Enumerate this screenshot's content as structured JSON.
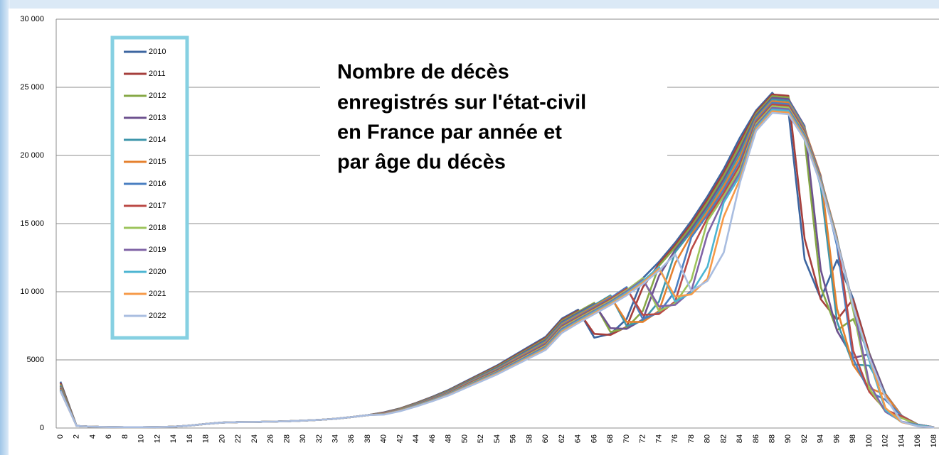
{
  "chart_data": {
    "type": "line",
    "title": [
      "Nombre de décès",
      "enregistrés sur l'état-civil",
      "en France par année et",
      "par âge du décès"
    ],
    "categories": [
      "0",
      "2",
      "4",
      "6",
      "8",
      "10",
      "12",
      "14",
      "16",
      "18",
      "20",
      "22",
      "24",
      "26",
      "28",
      "30",
      "32",
      "34",
      "36",
      "38",
      "40",
      "42",
      "44",
      "46",
      "48",
      "50",
      "52",
      "54",
      "56",
      "58",
      "60",
      "62",
      "64",
      "66",
      "68",
      "70",
      "72",
      "74",
      "76",
      "78",
      "80",
      "82",
      "84",
      "86",
      "88",
      "90",
      "92",
      "94",
      "96",
      "98",
      "100",
      "102",
      "104",
      "106",
      "108"
    ],
    "ylim": [
      0,
      30000
    ],
    "yticks": [
      0,
      5000,
      {
        "value": 10000,
        "label": "10 000"
      },
      {
        "value": 15000,
        "label": "15 000"
      },
      {
        "value": 20000,
        "label": "20 000"
      },
      {
        "value": 25000,
        "label": "25 000"
      },
      {
        "value": 30000,
        "label": "30 000"
      }
    ],
    "grid": true,
    "series": [
      {
        "name": "2010",
        "color": "#3d66a0",
        "values": [
          3400,
          150,
          100,
          70,
          60,
          60,
          70,
          100,
          180,
          300,
          400,
          430,
          450,
          470,
          500,
          540,
          600,
          680,
          800,
          950,
          1150,
          1450,
          1850,
          2300,
          2800,
          3400,
          4000,
          4600,
          5300,
          6000,
          6700,
          8030,
          8690,
          6630,
          6900,
          8000,
          11000,
          12200,
          13600,
          15200,
          17000,
          19000,
          21300,
          23300,
          24600,
          23275,
          12375,
          9500,
          12325,
          9500,
          5500,
          2500,
          900,
          250,
          60
        ]
      },
      {
        "name": "2011",
        "color": "#a63f3c",
        "values": [
          3300,
          150,
          100,
          70,
          60,
          60,
          70,
          100,
          180,
          300,
          400,
          430,
          450,
          470,
          500,
          540,
          600,
          680,
          800,
          950,
          1136,
          1433,
          1828,
          2272,
          2766,
          3359,
          3952,
          4545,
          5236,
          5928,
          6620,
          7948,
          8608,
          6909,
          6834,
          7425,
          10331,
          12050,
          13425,
          15000,
          16775,
          18750,
          21013,
          23175,
          24477,
          24378,
          13880,
          9452,
          7935,
          9453,
          5473,
          2488,
          896,
          249,
          60
        ]
      },
      {
        "name": "2012",
        "color": "#86a846",
        "values": [
          3200,
          150,
          100,
          70,
          60,
          60,
          70,
          100,
          180,
          300,
          400,
          430,
          450,
          470,
          500,
          540,
          600,
          680,
          800,
          950,
          1122,
          1415,
          1806,
          2245,
          2733,
          3318,
          3904,
          4490,
          5173,
          5856,
          6539,
          7865,
          8525,
          9185,
          7040,
          7350,
          8600,
          11900,
          13250,
          14800,
          16550,
          18500,
          20725,
          23050,
          24354,
          24255,
          21161,
          10346,
          7178,
          7994,
          5445,
          2475,
          891,
          248,
          59
        ]
      },
      {
        "name": "2013",
        "color": "#6e528f",
        "values": [
          3100,
          150,
          100,
          70,
          60,
          60,
          70,
          100,
          180,
          300,
          400,
          430,
          450,
          470,
          500,
          540,
          600,
          680,
          800,
          950,
          1109,
          1398,
          1783,
          2217,
          2699,
          3278,
          3856,
          4434,
          5109,
          5784,
          6459,
          7783,
          8443,
          9103,
          7329,
          7275,
          7969,
          11163,
          13075,
          14600,
          16325,
          18250,
          20438,
          22925,
          24231,
          24133,
          22163,
          11603,
          7141,
          5147,
          5418,
          2463,
          887,
          246,
          59
        ]
      },
      {
        "name": "2014",
        "color": "#3e96ab",
        "values": [
          3050,
          150,
          100,
          70,
          60,
          60,
          70,
          100,
          180,
          300,
          400,
          430,
          450,
          470,
          500,
          540,
          600,
          680,
          800,
          950,
          1095,
          1380,
          1761,
          2190,
          2666,
          3237,
          3808,
          4379,
          5046,
          5712,
          6378,
          7700,
          8360,
          9020,
          9735,
          7488,
          7875,
          9280,
          12900,
          14400,
          16100,
          18000,
          20150,
          22800,
          24108,
          24010,
          22050,
          17689,
          7816,
          4655,
          4582,
          2450,
          882,
          245,
          59
        ]
      },
      {
        "name": "2015",
        "color": "#e5812f",
        "values": [
          3000,
          150,
          100,
          70,
          60,
          60,
          70,
          100,
          180,
          300,
          400,
          430,
          450,
          470,
          500,
          540,
          600,
          680,
          800,
          950,
          1081,
          1363,
          1739,
          2162,
          2632,
          3196,
          3760,
          4324,
          4982,
          5640,
          6298,
          7618,
          8278,
          8938,
          9639,
          7790,
          7781,
          8588,
          12089,
          14200,
          15875,
          17750,
          19863,
          22675,
          23985,
          23888,
          21938,
          18525,
          8765,
          4631,
          2949,
          2438,
          878,
          244,
          59
        ]
      },
      {
        "name": "2016",
        "color": "#4a7fc1",
        "values": [
          2950,
          150,
          100,
          70,
          60,
          60,
          70,
          100,
          180,
          300,
          400,
          430,
          450,
          470,
          500,
          540,
          600,
          680,
          800,
          950,
          1067,
          1346,
          1717,
          2134,
          2598,
          3155,
          3712,
          4269,
          4918,
          5568,
          6218,
          7535,
          8195,
          8855,
          9543,
          10340,
          7995,
          8475,
          10040,
          14000,
          15650,
          17500,
          19575,
          22550,
          23862,
          23765,
          21825,
          18430,
          13362,
          5068,
          2668,
          2061,
          873,
          243,
          58
        ]
      },
      {
        "name": "2017",
        "color": "#bb4a46",
        "values": [
          2900,
          150,
          100,
          70,
          60,
          60,
          70,
          100,
          180,
          300,
          400,
          430,
          450,
          470,
          500,
          540,
          600,
          680,
          800,
          950,
          1053,
          1328,
          1695,
          2107,
          2565,
          3114,
          3664,
          4214,
          4855,
          5496,
          6137,
          7453,
          8113,
          8773,
          9447,
          10230,
          8303,
          8363,
          9281,
          13110,
          15425,
          17250,
          19288,
          22425,
          23739,
          23643,
          21713,
          18335,
          13993,
          5684,
          2654,
          1327,
          869,
          241,
          58
        ]
      },
      {
        "name": "2018",
        "color": "#9dc45c",
        "values": [
          2850,
          150,
          100,
          70,
          60,
          60,
          70,
          100,
          180,
          300,
          400,
          430,
          450,
          470,
          500,
          540,
          600,
          680,
          800,
          950,
          1040,
          1311,
          1672,
          2079,
          2531,
          3074,
          3616,
          4158,
          4791,
          5424,
          6057,
          7370,
          8030,
          8690,
          9350,
          10120,
          11000,
          8580,
          9150,
          10880,
          15200,
          17000,
          19000,
          22300,
          23616,
          23520,
          21600,
          18240,
          13920,
          8664,
          2904,
          1200,
          734,
          240,
          58
        ]
      },
      {
        "name": "2019",
        "color": "#8064a6",
        "values": [
          2800,
          150,
          100,
          70,
          60,
          60,
          70,
          100,
          180,
          300,
          400,
          430,
          450,
          470,
          500,
          540,
          600,
          680,
          800,
          950,
          1026,
          1293,
          1650,
          2052,
          2498,
          3033,
          3568,
          4103,
          4728,
          5352,
          5976,
          7274,
          7948,
          8608,
          9268,
          10024,
          10890,
          8918,
          9038,
          10069,
          14250,
          16775,
          18750,
          22175,
          23493,
          23398,
          21488,
          18145,
          13848,
          9073,
          3257,
          1194,
          473,
          239,
          57
        ]
      },
      {
        "name": "2020",
        "color": "#4cb5d2",
        "values": [
          2750,
          150,
          100,
          70,
          60,
          60,
          70,
          100,
          180,
          300,
          400,
          430,
          450,
          470,
          500,
          540,
          600,
          680,
          800,
          950,
          1012,
          1276,
          1628,
          2024,
          2464,
          2992,
          3520,
          4048,
          4664,
          5280,
          5896,
          7178,
          7865,
          8525,
          9185,
          9928,
          10780,
          11825,
          9282,
          9938,
          11840,
          16550,
          18500,
          22050,
          23370,
          23275,
          21375,
          18050,
          13775,
          9025,
          4964,
          1306,
          428,
          202,
          57
        ]
      },
      {
        "name": "2021",
        "color": "#f69a48",
        "values": [
          2700,
          150,
          100,
          70,
          60,
          60,
          70,
          100,
          180,
          300,
          400,
          430,
          450,
          470,
          500,
          540,
          600,
          680,
          800,
          950,
          998,
          1259,
          1606,
          1996,
          2430,
          2951,
          3472,
          3993,
          4600,
          5208,
          5816,
          7082,
          7783,
          8443,
          9103,
          9832,
          10670,
          11688,
          9635,
          9806,
          10950,
          15509,
          18250,
          21925,
          23247,
          23153,
          21263,
          17955,
          13703,
          8978,
          5198,
          1465,
          425,
          130,
          57
        ]
      },
      {
        "name": "2022",
        "color": "#a9bde0",
        "values": [
          2700,
          150,
          100,
          70,
          60,
          60,
          70,
          100,
          180,
          300,
          400,
          430,
          450,
          470,
          500,
          540,
          600,
          680,
          800,
          950,
          984,
          1241,
          1584,
          1969,
          2397,
          2910,
          3424,
          3938,
          4537,
          5136,
          5735,
          6985,
          7700,
          8360,
          9020,
          9735,
          10560,
          11550,
          12760,
          10062,
          10800,
          12880,
          18000,
          21800,
          23124,
          23030,
          21150,
          17860,
          13630,
          8930,
          5170,
          2233,
          465,
          118,
          48
        ]
      }
    ]
  }
}
